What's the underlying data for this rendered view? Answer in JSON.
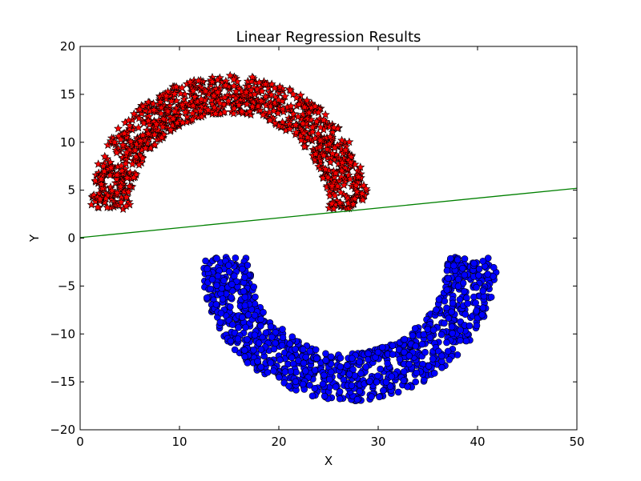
{
  "chart_data": {
    "type": "scatter",
    "title": "Linear Regression Results",
    "xlabel": "X",
    "ylabel": "Y",
    "xlim": [
      0,
      50
    ],
    "ylim": [
      -20,
      20
    ],
    "xticks": [
      "0",
      "10",
      "20",
      "30",
      "40",
      "50"
    ],
    "yticks": [
      "−20",
      "−15",
      "−10",
      "−5",
      "0",
      "5",
      "10",
      "15",
      "20"
    ],
    "grid": false,
    "legend": "none",
    "series": [
      {
        "kind": "scatter",
        "marker": "star",
        "color": "#ff0000",
        "description": "upper half-moon, centred near (15, 3), radius about 10–14",
        "arc": {
          "cx": 15,
          "cy": 3,
          "r_min": 10,
          "r_max": 14,
          "angle_deg": [
            0,
            180
          ]
        },
        "count": 1000
      },
      {
        "kind": "scatter",
        "marker": "circle",
        "color": "#0000ff",
        "description": "lower half-moon, centred near (27, -2), radius about 10–15",
        "arc": {
          "cx": 27,
          "cy": -2,
          "r_min": 10,
          "r_max": 15,
          "angle_deg": [
            180,
            360
          ]
        },
        "count": 1000
      },
      {
        "kind": "line",
        "color": "#008000",
        "x": [
          0,
          50
        ],
        "y": [
          0.05,
          5.2
        ]
      }
    ]
  }
}
